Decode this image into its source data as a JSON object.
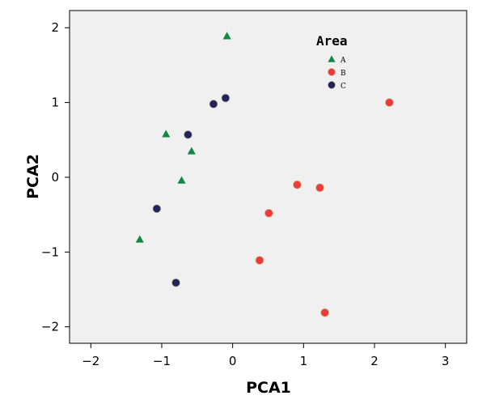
{
  "chart_data": {
    "type": "scatter",
    "xlabel": "PCA1",
    "ylabel": "PCA2",
    "xlim": [
      -2.3,
      3.3
    ],
    "ylim": [
      -2.22,
      2.23
    ],
    "xticks": [
      -2,
      -1,
      0,
      1,
      2,
      3
    ],
    "yticks": [
      -2,
      -1,
      0,
      1,
      2
    ],
    "xtick_labels": [
      "−2",
      "−1",
      "0",
      "1",
      "2",
      "3"
    ],
    "ytick_labels": [
      "−2",
      "−1",
      "0",
      "1",
      "2"
    ],
    "grid": false,
    "legend": {
      "title": "Area",
      "placement": "top-right"
    },
    "series": [
      {
        "name": "A",
        "marker": "triangle",
        "color": "#118844",
        "points": [
          {
            "x": -0.08,
            "y": 1.89
          },
          {
            "x": -0.94,
            "y": 0.58
          },
          {
            "x": -0.58,
            "y": 0.35
          },
          {
            "x": -0.72,
            "y": -0.04
          },
          {
            "x": -1.31,
            "y": -0.83
          }
        ]
      },
      {
        "name": "B",
        "marker": "circle",
        "color": "#f0393b",
        "points": [
          {
            "x": 2.21,
            "y": 1.0
          },
          {
            "x": 0.91,
            "y": -0.1
          },
          {
            "x": 1.23,
            "y": -0.14
          },
          {
            "x": 0.51,
            "y": -0.48
          },
          {
            "x": 0.38,
            "y": -1.11
          },
          {
            "x": 1.3,
            "y": -1.81
          }
        ]
      },
      {
        "name": "C",
        "marker": "circle",
        "color": "#23235e",
        "points": [
          {
            "x": -0.1,
            "y": 1.06
          },
          {
            "x": -0.27,
            "y": 0.98
          },
          {
            "x": -0.63,
            "y": 0.57
          },
          {
            "x": -1.07,
            "y": -0.42
          },
          {
            "x": -0.8,
            "y": -1.41
          }
        ]
      }
    ],
    "colors": {
      "plot_background": "#f0f0f0",
      "frame": "#000000",
      "marker_outline": "#c8c8a0"
    }
  }
}
